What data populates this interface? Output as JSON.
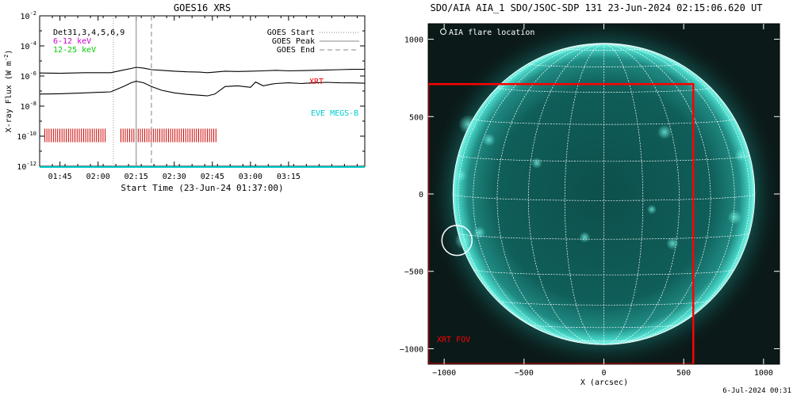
{
  "chart_data": [
    {
      "type": "line",
      "title": "GOES16 XRS",
      "xlabel": "Start Time (23-Jun-24 01:37:00)",
      "ylabel": "X-ray Flux (W m",
      "ylabel_sup": "-2",
      "ylabel_close": ")",
      "log_scale": true,
      "ylim_exp": [
        -12,
        -2
      ],
      "y_ticks": [
        {
          "value": -12,
          "base": "10",
          "exp": "-12"
        },
        {
          "value": -10,
          "base": "10",
          "exp": "-10"
        },
        {
          "value": -8,
          "base": "10",
          "exp": "-8"
        },
        {
          "value": -6,
          "base": "10",
          "exp": "-6"
        },
        {
          "value": -4,
          "base": "10",
          "exp": "-4"
        },
        {
          "value": -2,
          "base": "10",
          "exp": "-2"
        }
      ],
      "xlim_min": [
        97,
        225
      ],
      "x_ticks": [
        {
          "value": 105,
          "label": "01:45"
        },
        {
          "value": 120,
          "label": "02:00"
        },
        {
          "value": 135,
          "label": "02:15"
        },
        {
          "value": 150,
          "label": "02:30"
        },
        {
          "value": 165,
          "label": "02:45"
        },
        {
          "value": 180,
          "label": "03:00"
        },
        {
          "value": 195,
          "label": "03:15"
        }
      ],
      "legend": [
        "GOES Start",
        "GOES Peak",
        "GOES End"
      ],
      "markers": {
        "start": 126,
        "peak": 135,
        "end": 141
      },
      "detector_text": "Det31,3,4,5,6,9",
      "band_labels": [
        {
          "text": "6-12 keV",
          "color": "#cc00cc"
        },
        {
          "text": "12-25 keV",
          "color": "#00cc00"
        }
      ],
      "instrument_labels": [
        {
          "text": "XRT",
          "color": "#ee0000"
        },
        {
          "text": "EVE MEGS-B",
          "color": "#00cccc"
        }
      ],
      "series": [
        {
          "name": "",
          "color": "#000000",
          "x": [
            97,
            105,
            115,
            125,
            130,
            133,
            135,
            138,
            141,
            145,
            150,
            155,
            160,
            163,
            166,
            170,
            175,
            180,
            185,
            190,
            195,
            200,
            205,
            210,
            215,
            220,
            225
          ],
          "y": [
            -5.8,
            -5.82,
            -5.78,
            -5.78,
            -5.6,
            -5.5,
            -5.42,
            -5.48,
            -5.58,
            -5.62,
            -5.68,
            -5.72,
            -5.74,
            -5.78,
            -5.74,
            -5.68,
            -5.7,
            -5.68,
            -5.66,
            -5.62,
            -5.66,
            -5.64,
            -5.62,
            -5.6,
            -5.58,
            -5.56,
            -5.55
          ]
        },
        {
          "name": "",
          "color": "#000000",
          "x": [
            97,
            105,
            115,
            125,
            130,
            133,
            135,
            138,
            141,
            145,
            150,
            155,
            160,
            163,
            166,
            170,
            175,
            180,
            182,
            185,
            188,
            190,
            195,
            200,
            205,
            210,
            215,
            220,
            225
          ],
          "y": [
            -7.2,
            -7.18,
            -7.12,
            -7.05,
            -6.7,
            -6.45,
            -6.35,
            -6.45,
            -6.7,
            -6.95,
            -7.12,
            -7.22,
            -7.28,
            -7.32,
            -7.2,
            -6.7,
            -6.65,
            -6.75,
            -6.4,
            -6.65,
            -6.55,
            -6.5,
            -6.45,
            -6.5,
            -6.45,
            -6.42,
            -6.45,
            -6.46,
            -6.48
          ]
        },
        {
          "name": "",
          "color": "#00cccc",
          "x": [
            97,
            225
          ],
          "y": [
            -12.05,
            -12.05
          ]
        }
      ],
      "xrt_ticks": {
        "color": "#cc0000",
        "groups": [
          {
            "from": 99,
            "to": 123,
            "step": 0.85
          },
          {
            "from": 129,
            "to": 167,
            "step": 0.85
          }
        ],
        "y_exp_range": [
          -10.4,
          -9.5
        ]
      }
    },
    {
      "type": "heatmap",
      "title": "SDO/AIA AIA_1 SDO/JSOC-SDP 131 23-Jun-2024 02:15:06.620 UT",
      "xlabel": "X (arcsec)",
      "ylabel": "",
      "xlim": [
        -1100,
        1100
      ],
      "ylim": [
        -1100,
        1100
      ],
      "x_ticks": [
        -1000,
        -500,
        0,
        500,
        1000
      ],
      "y_ticks": [
        -1000,
        -500,
        0,
        500,
        1000
      ],
      "x_tick_labels": [
        "−1000",
        "−500",
        "0",
        "500",
        "1000"
      ],
      "y_tick_labels": [
        "−1000",
        "−500",
        "0",
        "500",
        "1000"
      ],
      "solar_radius_arcsec": 945,
      "legend_text": "AIA flare location",
      "flare_location": [
        -920,
        -300
      ],
      "fov_label": "XRT FOV",
      "fov": {
        "x": [
          -1100,
          560
        ],
        "y": [
          -1100,
          710
        ]
      },
      "colors": {
        "fov": "#ff0000",
        "grid": "#ffffff",
        "disk": "#0f5e59",
        "limb": "#58f2e2"
      }
    }
  ],
  "footer": {
    "date": "6-Jul-2024 00:31"
  }
}
